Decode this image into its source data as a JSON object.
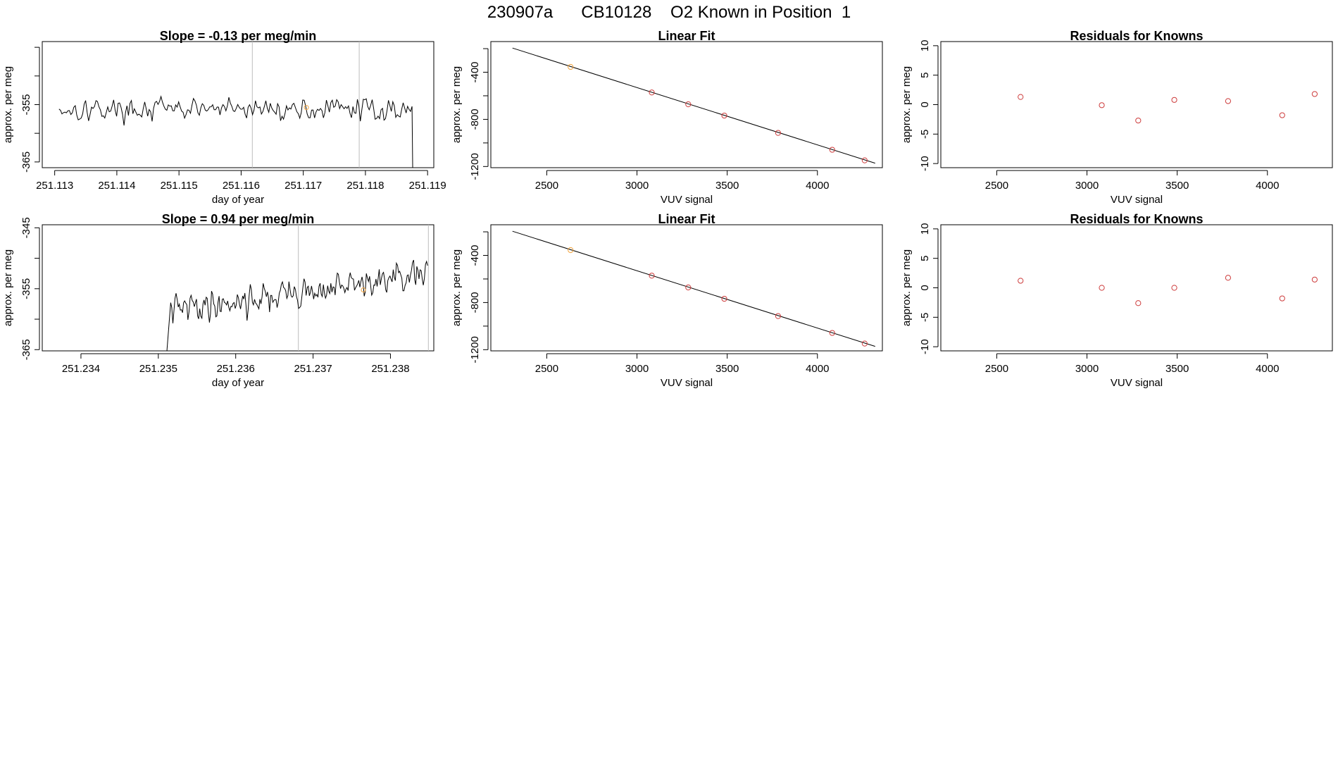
{
  "page_title": "230907a      CB10128    O2 Known in Position  1",
  "colors": {
    "axis": "#000000",
    "line": "#000000",
    "point_known": "#cd3b3b",
    "point_highlight": "#f2a33c",
    "vline": "#bdbdbd"
  },
  "chart_data": [
    {
      "id": "ts1",
      "type": "line",
      "title": "Slope =  -0.13  per meg/min",
      "xlabel": "day of year",
      "ylabel": "approx. per meg",
      "xlim": [
        251.1128,
        251.1191
      ],
      "ylim": [
        -366,
        -344
      ],
      "xticks": [
        251.113,
        251.114,
        251.115,
        251.116,
        251.117,
        251.118,
        251.119
      ],
      "xtick_labels": [
        "251.113",
        "251.114",
        "251.115",
        "251.116",
        "251.117",
        "251.118",
        "251.119"
      ],
      "yticks": [
        -365,
        -360,
        -355,
        -350,
        -345
      ],
      "ytick_labels": [
        "-365",
        "",
        "-355",
        "",
        ""
      ],
      "vlines": [
        251.11618,
        251.1179
      ],
      "marker": {
        "x": 251.11705,
        "y": -355.5
      },
      "series": {
        "x_start": 251.11307,
        "x_end": 251.11875,
        "drop_end": -367,
        "mean_start": -355.8,
        "mean_end": -355.8,
        "spread": 2.4,
        "seed": 17
      }
    },
    {
      "id": "fit1",
      "type": "scatter",
      "title": "Linear Fit",
      "xlabel": "VUV signal",
      "ylabel": "approx. per meg",
      "xlim": [
        2190,
        4360
      ],
      "ylim": [
        -1210,
        -140
      ],
      "xticks": [
        2500,
        3000,
        3500,
        4000
      ],
      "xtick_labels": [
        "2500",
        "3000",
        "3500",
        "4000"
      ],
      "yticks": [
        -1200,
        -800,
        -400
      ],
      "ytick_labels": [
        "-1200",
        "-800",
        "-400"
      ],
      "extra_yticks": [
        -200,
        -600,
        -1000
      ],
      "fit_line": {
        "x": [
          2310,
          4320
        ],
        "y": [
          -195,
          -1172
        ]
      },
      "points": [
        {
          "x": 2632,
          "y": -355,
          "highlight": true
        },
        {
          "x": 3082,
          "y": -572
        },
        {
          "x": 3284,
          "y": -672
        },
        {
          "x": 3484,
          "y": -768
        },
        {
          "x": 3782,
          "y": -915
        },
        {
          "x": 4082,
          "y": -1058
        },
        {
          "x": 4262,
          "y": -1148
        }
      ]
    },
    {
      "id": "res1",
      "type": "scatter",
      "title": "Residuals for Knowns",
      "xlabel": "VUV signal",
      "ylabel": "approx. per meg",
      "xlim": [
        2190,
        4360
      ],
      "ylim": [
        -10.7,
        10.7
      ],
      "xticks": [
        2500,
        3000,
        3500,
        4000
      ],
      "xtick_labels": [
        "2500",
        "3000",
        "3500",
        "4000"
      ],
      "yticks": [
        -10,
        -5,
        0,
        5,
        10
      ],
      "ytick_labels": [
        "-10",
        "-5",
        "0",
        "5",
        "10"
      ],
      "points": [
        {
          "x": 2632,
          "y": 1.3
        },
        {
          "x": 3082,
          "y": -0.1
        },
        {
          "x": 3284,
          "y": -2.7
        },
        {
          "x": 3484,
          "y": 0.8
        },
        {
          "x": 3782,
          "y": 0.6
        },
        {
          "x": 4082,
          "y": -1.8
        },
        {
          "x": 4262,
          "y": 1.8
        }
      ]
    },
    {
      "id": "ts2",
      "type": "line",
      "title": "Slope =  0.94  per meg/min",
      "xlabel": "day of year",
      "ylabel": "approx. per meg",
      "xlim": [
        251.2335,
        251.23856
      ],
      "ylim": [
        -365.2,
        -344.5
      ],
      "xticks": [
        251.234,
        251.235,
        251.236,
        251.237,
        251.238
      ],
      "xtick_labels": [
        "251.234",
        "251.235",
        "251.236",
        "251.237",
        "251.238"
      ],
      "yticks": [
        -365,
        -360,
        -355,
        -350,
        -345
      ],
      "ytick_labels": [
        "-365",
        "",
        "-355",
        "",
        "-345"
      ],
      "vlines": [
        251.23681,
        251.23849
      ],
      "marker": {
        "x": 251.23765,
        "y": -355.2
      },
      "series": {
        "x_start": 251.23516,
        "x_end": 251.23848,
        "lead_x": 251.2351,
        "lead_y": -367,
        "mean_start": -358.5,
        "mean_end": -352.8,
        "spread": 3.2,
        "seed": 41
      }
    },
    {
      "id": "fit2",
      "type": "scatter",
      "title": "Linear Fit",
      "xlabel": "VUV signal",
      "ylabel": "approx. per meg",
      "xlim": [
        2190,
        4360
      ],
      "ylim": [
        -1210,
        -140
      ],
      "xticks": [
        2500,
        3000,
        3500,
        4000
      ],
      "xtick_labels": [
        "2500",
        "3000",
        "3500",
        "4000"
      ],
      "yticks": [
        -1200,
        -800,
        -400
      ],
      "ytick_labels": [
        "-1200",
        "-800",
        "-400"
      ],
      "extra_yticks": [
        -200,
        -600,
        -1000
      ],
      "fit_line": {
        "x": [
          2310,
          4320
        ],
        "y": [
          -195,
          -1172
        ]
      },
      "points": [
        {
          "x": 2632,
          "y": -355,
          "highlight": true
        },
        {
          "x": 3082,
          "y": -572
        },
        {
          "x": 3284,
          "y": -672
        },
        {
          "x": 3484,
          "y": -768
        },
        {
          "x": 3782,
          "y": -915
        },
        {
          "x": 4082,
          "y": -1058
        },
        {
          "x": 4262,
          "y": -1148
        }
      ]
    },
    {
      "id": "res2",
      "type": "scatter",
      "title": "Residuals for Knowns",
      "xlabel": "VUV signal",
      "ylabel": "approx. per meg",
      "xlim": [
        2190,
        4360
      ],
      "ylim": [
        -10.7,
        10.7
      ],
      "xticks": [
        2500,
        3000,
        3500,
        4000
      ],
      "xtick_labels": [
        "2500",
        "3000",
        "3500",
        "4000"
      ],
      "yticks": [
        -10,
        -5,
        0,
        5,
        10
      ],
      "ytick_labels": [
        "-10",
        "-5",
        "0",
        "5",
        "10"
      ],
      "points": [
        {
          "x": 2632,
          "y": 1.2
        },
        {
          "x": 3082,
          "y": 0.0
        },
        {
          "x": 3284,
          "y": -2.6
        },
        {
          "x": 3484,
          "y": 0.0
        },
        {
          "x": 3782,
          "y": 1.7
        },
        {
          "x": 4082,
          "y": -1.8
        },
        {
          "x": 4262,
          "y": 1.4
        }
      ]
    }
  ]
}
